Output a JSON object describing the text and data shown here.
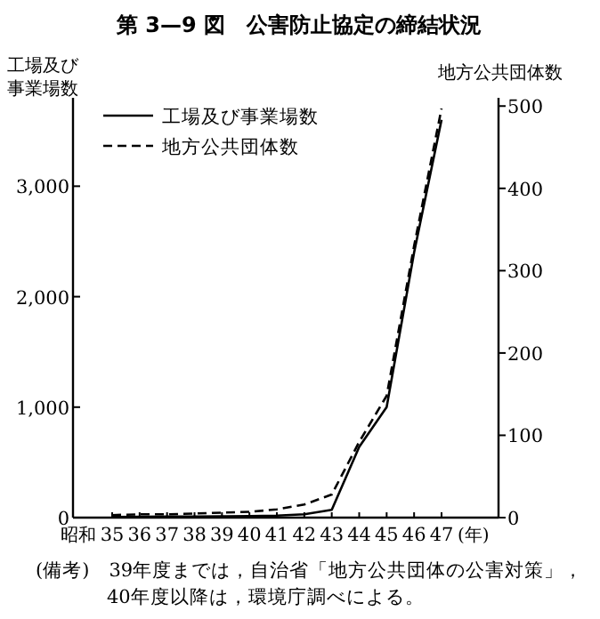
{
  "chart_data": {
    "type": "line",
    "title": "第 3—9 図　公害防止協定の締結状況",
    "ylabel": "工場及び事業場数",
    "y2label": "地方公共団体数",
    "xlabel": "(年)",
    "categories": [
      "35",
      "36",
      "37",
      "38",
      "39",
      "40",
      "41",
      "42",
      "43",
      "44",
      "45",
      "46",
      "47"
    ],
    "series": [
      {
        "name": "工場及び事業場数",
        "color": "#000000",
        "line_style": "solid",
        "values": [
          5,
          8,
          10,
          10,
          12,
          14,
          18,
          30,
          70,
          640,
          1000,
          2400,
          3600
        ]
      },
      {
        "name": "地方公共団体数",
        "color": "#000000",
        "line_style": "dashed",
        "axis": "y2",
        "values": [
          3,
          4,
          4,
          5,
          6,
          7,
          10,
          16,
          28,
          92,
          148,
          330,
          497
        ]
      }
    ],
    "ylim": [
      0,
      3800
    ],
    "yticks": [
      0,
      {
        "value": 1000,
        "label": "1,000"
      },
      {
        "value": 2000,
        "label": "2,000"
      },
      {
        "value": 3000,
        "label": "3,000"
      }
    ],
    "y2lim": [
      0,
      510
    ],
    "y2ticks": [
      0,
      100,
      200,
      300,
      400,
      500
    ],
    "legend": "top left",
    "marker": "none",
    "grid": false,
    "annotations": [
      "昭和",
      "(備考)　39年度までは，自治省「地方公共団体の公害対策」，40年度以降は，環境庁調べによる。"
    ]
  }
}
